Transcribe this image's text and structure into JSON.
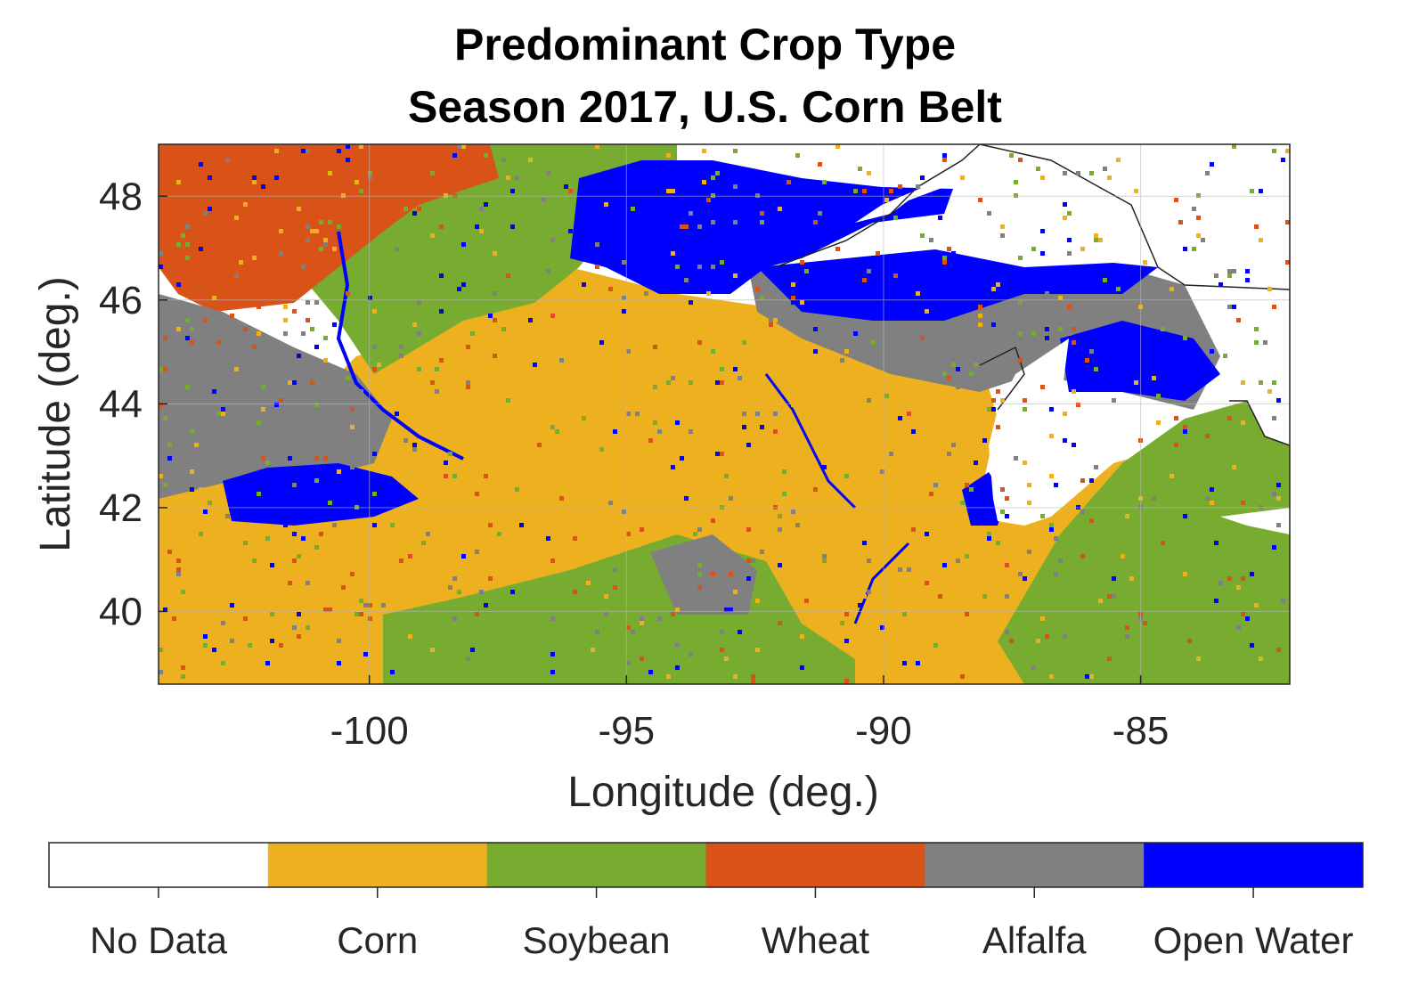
{
  "title_line1": "Predominant Crop Type",
  "title_line2": "Season 2017, U.S. Corn Belt",
  "chart_data": {
    "type": "heatmap",
    "xlabel": "Longitude (deg.)",
    "ylabel": "Latitude (deg.)",
    "xlim": [
      -104.1,
      -82.1
    ],
    "ylim": [
      38.6,
      49.0
    ],
    "xticks": [
      -100,
      -95,
      -90,
      -85
    ],
    "yticks": [
      40,
      42,
      44,
      46,
      48
    ],
    "grid": true,
    "colorbar": {
      "placement": "bottom",
      "categories": [
        {
          "label": "No Data",
          "color": "#ffffff"
        },
        {
          "label": "Corn",
          "color": "#edb120"
        },
        {
          "label": "Soybean",
          "color": "#77ac30"
        },
        {
          "label": "Wheat",
          "color": "#d95319"
        },
        {
          "label": "Alfalfa",
          "color": "#808080"
        },
        {
          "label": "Open Water",
          "color": "#0000ff"
        }
      ]
    }
  }
}
